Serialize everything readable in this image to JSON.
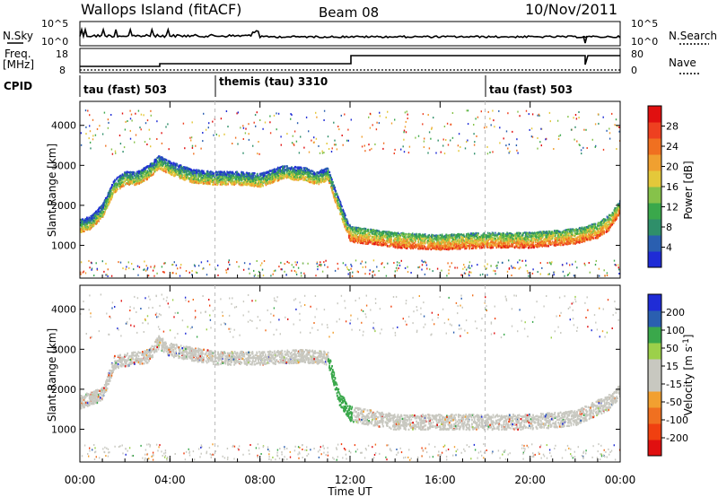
{
  "header": {
    "title": "Wallops Island (fitACF)",
    "beam": "Beam 08",
    "date": "10/Nov/2011"
  },
  "noise_panel": {
    "left_label": "N.Sky",
    "right_label": "N.Search",
    "tick_top": "10^5",
    "tick_bottom": "10^0"
  },
  "freq_panel": {
    "left_label_1": "Freq.",
    "left_label_2": "[MHz]",
    "left_tick_top": "18",
    "left_tick_bottom": "8",
    "right_label": "Nave",
    "right_tick_top": "80",
    "right_tick_bottom": "0"
  },
  "cpid": {
    "label": "CPID",
    "segments": [
      "tau (fast) 503",
      "themis (tau) 3310",
      "tau (fast) 503"
    ]
  },
  "colors": {
    "power": [
      "#1f2cd6",
      "#2a5fb0",
      "#2f8f6a",
      "#3aa84b",
      "#86c24a",
      "#e4c83a",
      "#f0a030",
      "#f07020",
      "#ee4020",
      "#e01010"
    ],
    "velocity": [
      "#e01010",
      "#f04010",
      "#f07020",
      "#f2a030",
      "#c8c8c0",
      "#c8c8c0",
      "#9cd04a",
      "#3aa84b",
      "#2a5fb0",
      "#1f2cd6"
    ]
  },
  "chart_data": [
    {
      "type": "heatmap",
      "title": "",
      "xlabel": "Time UT",
      "ylabel": "Slant Range [km]",
      "colorbar_label": "Power [dB]",
      "x_ticks": [
        "00:00",
        "04:00",
        "08:00",
        "12:00",
        "16:00",
        "20:00",
        "00:00"
      ],
      "x_range_hours": [
        0,
        24
      ],
      "y_ticks": [
        1000,
        2000,
        3000,
        4000
      ],
      "y_range_km": [
        180,
        4600
      ],
      "colorbar_ticks": [
        4,
        8,
        12,
        16,
        20,
        24,
        28
      ],
      "colorbar_range": [
        0,
        32
      ],
      "scatter_band_km": [
        [
          0.0,
          1500
        ],
        [
          0.5,
          1600
        ],
        [
          1.0,
          1900
        ],
        [
          1.5,
          2500
        ],
        [
          2.0,
          2700
        ],
        [
          2.5,
          2700
        ],
        [
          3.0,
          2850
        ],
        [
          3.5,
          3100
        ],
        [
          4.0,
          2950
        ],
        [
          5.0,
          2750
        ],
        [
          6.0,
          2700
        ],
        [
          7.0,
          2700
        ],
        [
          8.0,
          2650
        ],
        [
          9.0,
          2850
        ],
        [
          10.0,
          2800
        ],
        [
          10.5,
          2700
        ],
        [
          11.0,
          2800
        ],
        [
          11.3,
          2300
        ],
        [
          11.7,
          1700
        ],
        [
          12.0,
          1300
        ],
        [
          14.0,
          1150
        ],
        [
          16.0,
          1100
        ],
        [
          18.0,
          1150
        ],
        [
          20.0,
          1150
        ],
        [
          22.0,
          1250
        ],
        [
          23.0,
          1400
        ],
        [
          23.5,
          1600
        ],
        [
          24.0,
          2000
        ]
      ]
    },
    {
      "type": "heatmap",
      "title": "",
      "xlabel": "Time UT",
      "ylabel": "Slant Range [km]",
      "colorbar_label": "Velocity [m s^-1]",
      "x_ticks": [
        "00:00",
        "04:00",
        "08:00",
        "12:00",
        "16:00",
        "20:00",
        "00:00"
      ],
      "x_range_hours": [
        0,
        24
      ],
      "y_ticks": [
        1000,
        2000,
        3000,
        4000
      ],
      "y_range_km": [
        180,
        4600
      ],
      "colorbar_ticks": [
        "200",
        "100",
        "50",
        "15",
        "-15",
        "-50",
        "-100",
        "-200"
      ],
      "scatter_band_km": [
        [
          0.0,
          1700
        ],
        [
          1.0,
          1900
        ],
        [
          1.5,
          2700
        ],
        [
          3.0,
          2850
        ],
        [
          3.5,
          3200
        ],
        [
          4.0,
          3000
        ],
        [
          6.0,
          2800
        ],
        [
          8.0,
          2800
        ],
        [
          10.0,
          2850
        ],
        [
          11.0,
          2800
        ],
        [
          11.5,
          1800
        ],
        [
          12.0,
          1400
        ],
        [
          14.0,
          1200
        ],
        [
          16.0,
          1200
        ],
        [
          18.0,
          1200
        ],
        [
          20.0,
          1200
        ],
        [
          22.0,
          1300
        ],
        [
          23.5,
          1700
        ],
        [
          24.0,
          2000
        ]
      ]
    }
  ]
}
